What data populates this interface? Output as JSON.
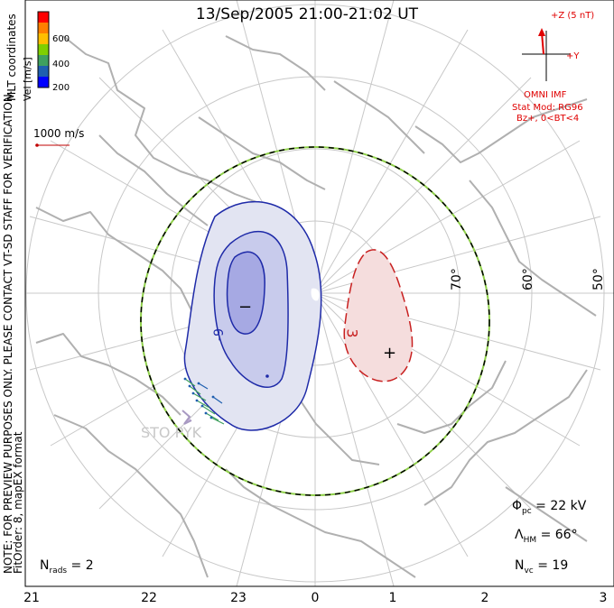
{
  "title": "13/Sep/2005 21:00-21:02 UT",
  "side_note": {
    "line1": "NOTE: FOR PREVIEW PURPOSES ONLY. PLEASE CONTACT VT-SD STAFF FOR VERIFICATION.",
    "line2": "FitOrder: 8,  mapEX format"
  },
  "coordinates_label": "MLT coordinates",
  "color_bar": {
    "axis_label": "Vel [m/s]",
    "ticks": [
      "600",
      "400",
      "200"
    ],
    "colors": [
      "#ff0000",
      "#ff7f00",
      "#ffbf00",
      "#7fcf00",
      "#3fa05f",
      "#1f5faf",
      "#0000ff"
    ]
  },
  "vector_scale": "1000 m/s",
  "imf": {
    "z_label": "+Z (5 nT)",
    "y_label": "+Y",
    "source": "OMNI IMF",
    "stat_mod": "Stat Mod: RG96",
    "condition": "Bz+,  0<BT<4"
  },
  "latitude_labels": [
    "70°",
    "60°",
    "50°"
  ],
  "mlt_labels": [
    "21",
    "22",
    "23",
    "0",
    "1",
    "2",
    "3"
  ],
  "contour_labels": {
    "negative": "-9",
    "positive": "3"
  },
  "extrema_markers": {
    "min": "−",
    "max": "+"
  },
  "station": "STO  PYK",
  "stats": {
    "phi_pc": "22 kV",
    "lambda_hm": "66°",
    "n_vc": "19",
    "n_rads": "2"
  },
  "colors": {
    "dusk_cell": "#1e2aa8",
    "dawn_cell": "#c82020",
    "hmb": "#8fd04a",
    "coast": "#b0b0b0",
    "imf": "#e00000"
  }
}
